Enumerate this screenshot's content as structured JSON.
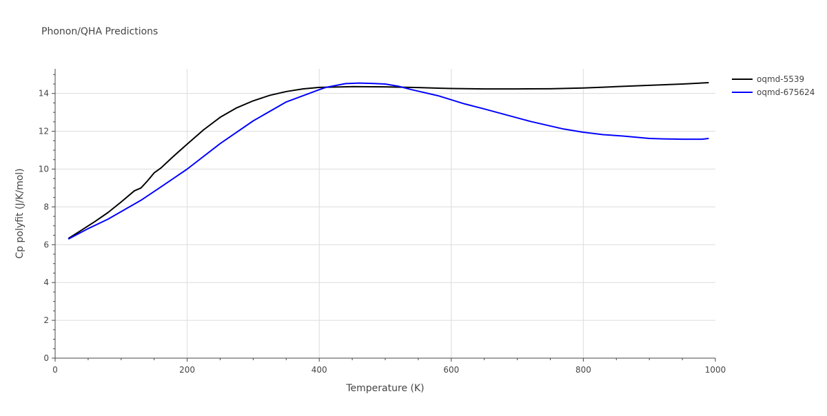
{
  "chart_data": {
    "type": "line",
    "title": "Phonon/QHA Predictions",
    "xlabel": "Temperature (K)",
    "ylabel": "Cp polyfit (J/K/mol)",
    "xlim": [
      0,
      1000
    ],
    "ylim": [
      0,
      15.3
    ],
    "xticks": [
      0,
      200,
      400,
      600,
      800,
      1000
    ],
    "yticks": [
      0,
      2,
      4,
      6,
      8,
      10,
      12,
      14
    ],
    "xtick_labels": [
      "0",
      "200",
      "400",
      "600",
      "800",
      "1000"
    ],
    "ytick_labels": [
      "0",
      "2",
      "4",
      "6",
      "8",
      "10",
      "12",
      "14"
    ],
    "grid": true,
    "legend_position": "top-right",
    "series": [
      {
        "name": "oqmd-5539",
        "color": "#000000",
        "x": [
          20,
          40,
          60,
          80,
          100,
          120,
          130,
          140,
          150,
          160,
          180,
          200,
          225,
          250,
          275,
          300,
          325,
          350,
          375,
          400,
          450,
          500,
          550,
          600,
          650,
          700,
          750,
          800,
          830,
          850,
          900,
          950,
          990
        ],
        "y": [
          6.33,
          6.77,
          7.22,
          7.7,
          8.26,
          8.85,
          9.0,
          9.38,
          9.8,
          10.05,
          10.7,
          11.32,
          12.08,
          12.74,
          13.24,
          13.61,
          13.9,
          14.1,
          14.24,
          14.32,
          14.36,
          14.35,
          14.31,
          14.26,
          14.24,
          14.24,
          14.25,
          14.29,
          14.33,
          14.36,
          14.43,
          14.5,
          14.57
        ]
      },
      {
        "name": "oqmd-675624",
        "color": "#0000ff",
        "x": [
          20,
          50,
          80,
          100,
          130,
          160,
          200,
          250,
          300,
          350,
          400,
          410,
          440,
          460,
          480,
          500,
          520,
          540,
          580,
          620,
          650,
          720,
          770,
          800,
          830,
          860,
          900,
          920,
          950,
          980,
          990
        ],
        "y": [
          6.3,
          6.85,
          7.35,
          7.75,
          8.35,
          9.05,
          10.0,
          11.35,
          12.55,
          13.55,
          14.2,
          14.32,
          14.52,
          14.55,
          14.53,
          14.5,
          14.38,
          14.2,
          13.88,
          13.45,
          13.18,
          12.52,
          12.12,
          11.95,
          11.82,
          11.75,
          11.62,
          11.6,
          11.58,
          11.58,
          11.62
        ]
      }
    ]
  }
}
